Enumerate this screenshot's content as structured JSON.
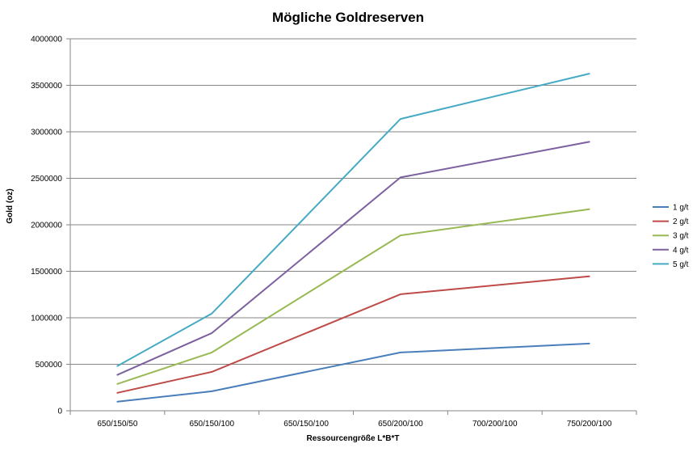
{
  "chart_data": {
    "type": "line",
    "title": "Mögliche Goldreserven",
    "xlabel": "Ressourcengröße L*B*T",
    "ylabel": "Gold (oz)",
    "categories": [
      "650/150/50",
      "650/150/100",
      "650/150/100",
      "650/200/100",
      "700/200/100",
      "750/200/100"
    ],
    "ylim": [
      0,
      4000000
    ],
    "yticks": [
      "0",
      "500000",
      "1000000",
      "1500000",
      "2000000",
      "2500000",
      "3000000",
      "3500000",
      "4000000"
    ],
    "grid": true,
    "legend_position": "right",
    "series": [
      {
        "name": "1 g/t",
        "color": "#4A7EBB",
        "points": [
          [
            0,
            97000
          ],
          [
            1,
            210000
          ],
          [
            3,
            627000
          ],
          [
            5,
            723000
          ]
        ]
      },
      {
        "name": "2 g/t",
        "color": "#BE4B48",
        "points": [
          [
            0,
            193000
          ],
          [
            1,
            418000
          ],
          [
            3,
            1253000
          ],
          [
            5,
            1445000
          ]
        ]
      },
      {
        "name": "3 g/t",
        "color": "#98B954",
        "points": [
          [
            0,
            289000
          ],
          [
            1,
            627000
          ],
          [
            3,
            1886000
          ],
          [
            5,
            2168000
          ]
        ]
      },
      {
        "name": "4 g/t",
        "color": "#7D60A0",
        "points": [
          [
            0,
            386000
          ],
          [
            1,
            836000
          ],
          [
            3,
            2510000
          ],
          [
            5,
            2892000
          ]
        ]
      },
      {
        "name": "5 g/t",
        "color": "#46AAC5",
        "points": [
          [
            0,
            482000
          ],
          [
            1,
            1046000
          ],
          [
            3,
            3138000
          ],
          [
            5,
            3625000
          ]
        ]
      }
    ]
  }
}
